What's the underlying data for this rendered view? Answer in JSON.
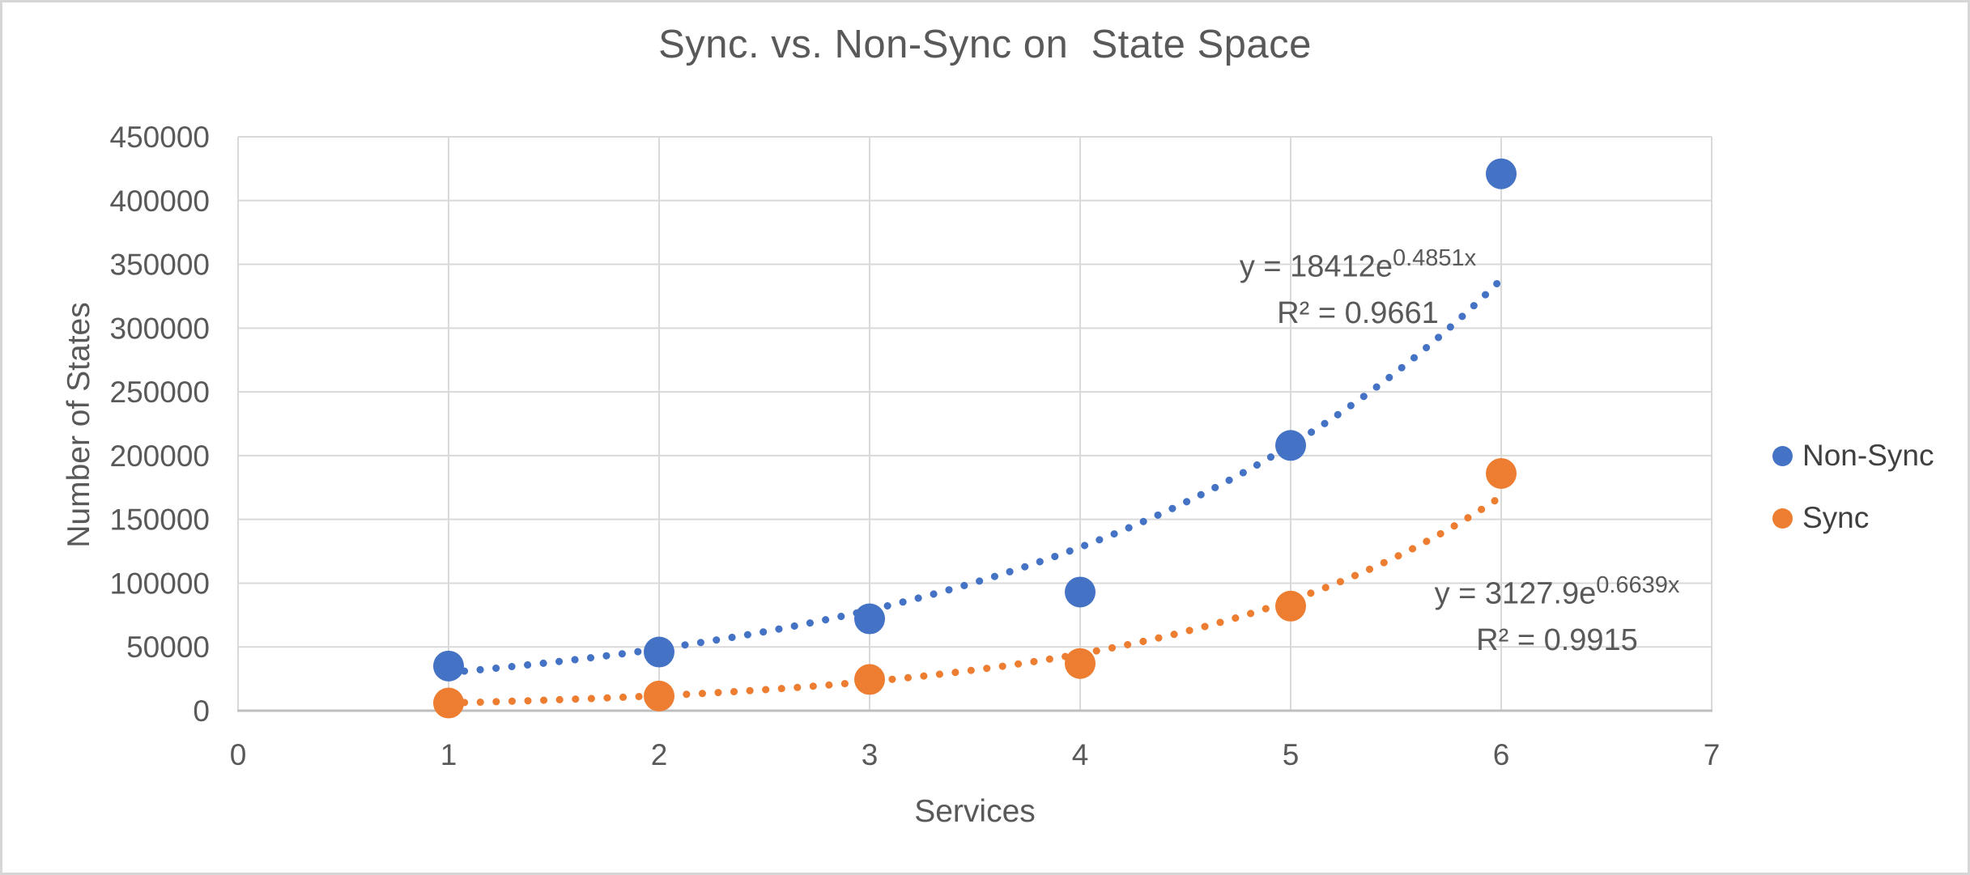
{
  "window": {
    "background": "#ffffff",
    "border_color": "#d6d6d6"
  },
  "chart_data": {
    "type": "scatter",
    "title": "Sync. vs. Non-Sync on  State Space",
    "xlabel": "Services",
    "ylabel": "Number of States",
    "xlim": [
      0,
      7
    ],
    "ylim": [
      0,
      450000
    ],
    "x_ticks": [
      0,
      1,
      2,
      3,
      4,
      5,
      6,
      7
    ],
    "y_ticks": [
      0,
      50000,
      100000,
      150000,
      200000,
      250000,
      300000,
      350000,
      400000,
      450000
    ],
    "x_tick_labels": [
      "0",
      "1",
      "2",
      "3",
      "4",
      "5",
      "6",
      "7"
    ],
    "y_tick_labels": [
      "0",
      "50000",
      "100000",
      "150000",
      "200000",
      "250000",
      "300000",
      "350000",
      "400000",
      "450000"
    ],
    "grid": true,
    "legend_position": "right",
    "colors": {
      "text": "#595959",
      "gridline": "#d9d9d9",
      "axis_line": "#bfbfbf"
    },
    "series": [
      {
        "name": "Non-Sync",
        "color": "#4472c4",
        "x": [
          1,
          2,
          3,
          4,
          5,
          6
        ],
        "y": [
          35000,
          46000,
          72000,
          93000,
          208000,
          421000
        ],
        "trendline": {
          "type": "exponential",
          "a": 18412,
          "b": 0.4851,
          "x_start": 1,
          "x_end": 6,
          "eq_prefix": "y = 18412e",
          "eq_exponent": "0.4851x",
          "r_squared": "R² = 0.9661"
        }
      },
      {
        "name": "Sync",
        "color": "#ed7d31",
        "x": [
          1,
          2,
          3,
          4,
          5,
          6
        ],
        "y": [
          6000,
          11500,
          24500,
          37000,
          82000,
          186000
        ],
        "trendline": {
          "type": "exponential",
          "a": 3127.9,
          "b": 0.6639,
          "x_start": 1,
          "x_end": 6,
          "eq_prefix": "y = 3127.9e",
          "eq_exponent": "0.6639x",
          "r_squared": "R² = 0.9915"
        }
      }
    ]
  }
}
